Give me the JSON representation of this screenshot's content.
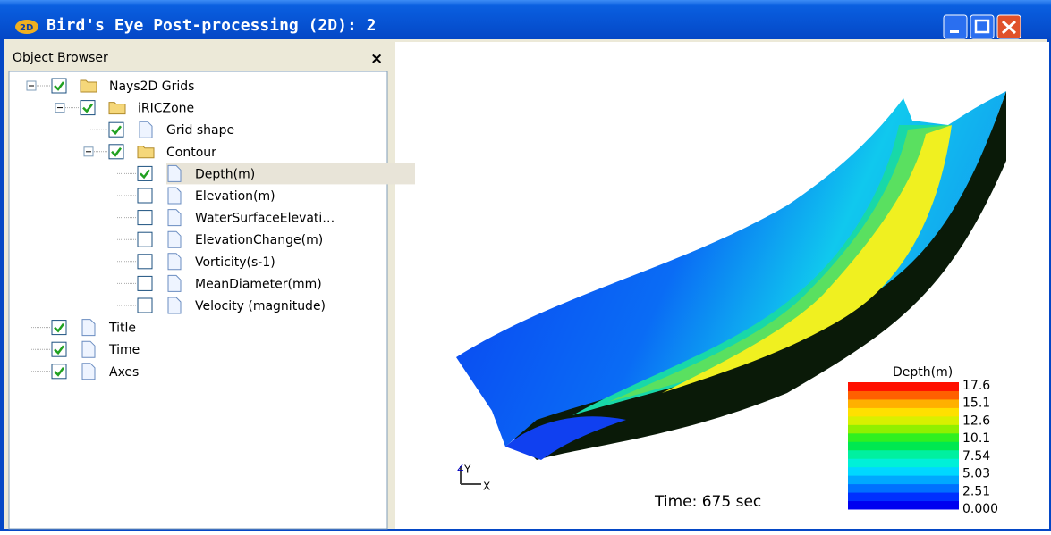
{
  "window": {
    "title": "Bird's Eye Post-processing (2D): 2"
  },
  "object_browser": {
    "title": "Object Browser",
    "close": "×",
    "tree": [
      {
        "label": "Nays2D Grids",
        "checked": true,
        "icon": "folder",
        "children": [
          {
            "label": "iRICZone",
            "checked": true,
            "icon": "folder",
            "children": [
              {
                "label": "Grid shape",
                "checked": true,
                "icon": "file"
              },
              {
                "label": "Contour",
                "checked": true,
                "icon": "folder",
                "children": [
                  {
                    "label": "Depth(m)",
                    "checked": true,
                    "icon": "file",
                    "selected": true
                  },
                  {
                    "label": "Elevation(m)",
                    "checked": false,
                    "icon": "file"
                  },
                  {
                    "label": "WaterSurfaceElevati…",
                    "checked": false,
                    "icon": "file"
                  },
                  {
                    "label": "ElevationChange(m)",
                    "checked": false,
                    "icon": "file"
                  },
                  {
                    "label": "Vorticity(s-1)",
                    "checked": false,
                    "icon": "file"
                  },
                  {
                    "label": "MeanDiameter(mm)",
                    "checked": false,
                    "icon": "file"
                  },
                  {
                    "label": "Velocity (magnitude)",
                    "checked": false,
                    "icon": "file"
                  }
                ]
              }
            ]
          }
        ]
      },
      {
        "label": "Title",
        "checked": true,
        "icon": "file"
      },
      {
        "label": "Time",
        "checked": true,
        "icon": "file"
      },
      {
        "label": "Axes",
        "checked": true,
        "icon": "file"
      }
    ]
  },
  "view": {
    "time": "Time: 675 sec",
    "axes": {
      "z": "Z",
      "y": "Y",
      "x": "X"
    },
    "legend": {
      "title": "Depth(m)",
      "labels": [
        "17.6",
        "15.1",
        "12.6",
        "10.1",
        "7.54",
        "5.03",
        "2.51",
        "0.000"
      ]
    }
  }
}
